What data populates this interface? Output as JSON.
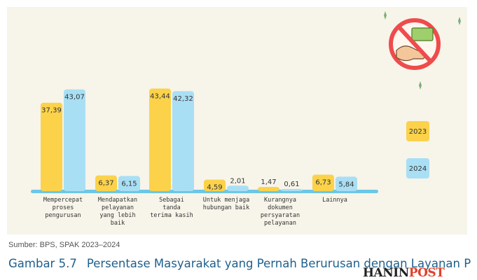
{
  "chart_data": {
    "type": "bar",
    "categories": [
      [
        "Mempercepat",
        "proses",
        "pengurusan"
      ],
      [
        "Mendapatkan",
        "pelayanan",
        "yang lebih",
        "baik"
      ],
      [
        "Sebagai",
        "tanda",
        "terima kasih"
      ],
      [
        "Untuk menjaga",
        "hubungan baik"
      ],
      [
        "Kurangnya",
        "dokumen",
        "persyaratan",
        "pelayanan"
      ],
      [
        "Lainnya"
      ]
    ],
    "series": [
      {
        "name": "2023",
        "color": "#fbd24a",
        "values": [
          37.39,
          6.37,
          43.44,
          4.59,
          1.47,
          6.73
        ]
      },
      {
        "name": "2024",
        "color": "#a9dff4",
        "values": [
          43.07,
          6.15,
          42.32,
          2.01,
          0.61,
          5.84
        ]
      }
    ],
    "value_labels": [
      [
        "37,39",
        "6,37",
        "43,44",
        "4,59",
        "1,47",
        "6,73"
      ],
      [
        "43,07",
        "6,15",
        "42,32",
        "2,01",
        "0,61",
        "5,84"
      ]
    ],
    "legend_position": "right",
    "baseline_color": "#6cc7e6",
    "decoration_icon": "no-bribe-icon"
  },
  "source_text": "Sumber: BPS, SPAK 2023–2024",
  "caption": {
    "number": "Gambar 5.7",
    "text": "Persentase Masyarakat yang Pernah Berurusan dengan Layanan Publik dan Mengeluarkan Uang/"
  },
  "watermark": {
    "part1": "HANIN",
    "part2": "POST"
  }
}
